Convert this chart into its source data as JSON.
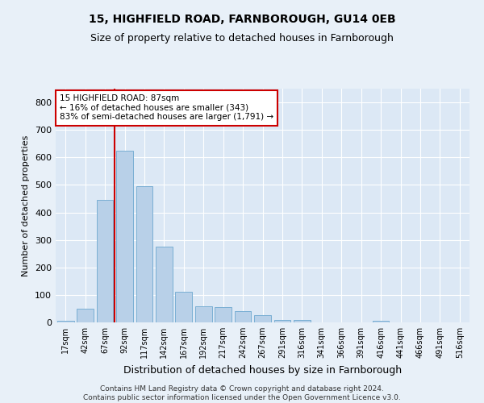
{
  "title1": "15, HIGHFIELD ROAD, FARNBOROUGH, GU14 0EB",
  "title2": "Size of property relative to detached houses in Farnborough",
  "xlabel": "Distribution of detached houses by size in Farnborough",
  "ylabel": "Number of detached properties",
  "categories": [
    "17sqm",
    "42sqm",
    "67sqm",
    "92sqm",
    "117sqm",
    "142sqm",
    "167sqm",
    "192sqm",
    "217sqm",
    "242sqm",
    "267sqm",
    "291sqm",
    "316sqm",
    "341sqm",
    "366sqm",
    "391sqm",
    "416sqm",
    "441sqm",
    "466sqm",
    "491sqm",
    "516sqm"
  ],
  "bar_values": [
    5,
    50,
    445,
    625,
    495,
    275,
    110,
    60,
    55,
    40,
    25,
    10,
    10,
    0,
    0,
    0,
    5,
    0,
    0,
    0,
    0
  ],
  "bar_color": "#b8d0e8",
  "bar_edge_color": "#7aafd4",
  "annotation_text": "15 HIGHFIELD ROAD: 87sqm\n← 16% of detached houses are smaller (343)\n83% of semi-detached houses are larger (1,791) →",
  "annotation_box_color": "#ffffff",
  "annotation_box_edge": "#cc0000",
  "vline_color": "#cc0000",
  "ylim": [
    0,
    850
  ],
  "yticks": [
    0,
    100,
    200,
    300,
    400,
    500,
    600,
    700,
    800
  ],
  "footer": "Contains HM Land Registry data © Crown copyright and database right 2024.\nContains public sector information licensed under the Open Government Licence v3.0.",
  "bg_color": "#e8f0f8",
  "plot_bg_color": "#dce8f5",
  "title1_fontsize": 10,
  "title2_fontsize": 9,
  "ylabel_fontsize": 8,
  "xlabel_fontsize": 9,
  "tick_fontsize": 8,
  "xtick_fontsize": 7,
  "footer_fontsize": 6.5
}
